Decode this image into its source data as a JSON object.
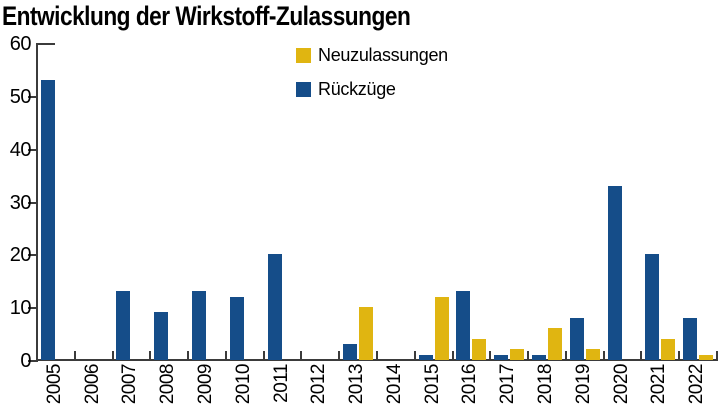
{
  "title": "Entwicklung der Wirkstoff-Zulassungen",
  "legend": {
    "items": [
      {
        "label": "Neuzulassungen",
        "color": "#e0b511"
      },
      {
        "label": "Rückzüge",
        "color": "#154d89"
      }
    ]
  },
  "colors": {
    "neuzulassungen": "#e0b511",
    "rueckzuege": "#154d89",
    "axis": "#3b3b3b",
    "text": "#000000"
  },
  "chart_data": {
    "type": "bar",
    "title": "Entwicklung der Wirkstoff-Zulassungen",
    "categories": [
      "2005",
      "2006",
      "2007",
      "2008",
      "2009",
      "2010",
      "2011",
      "2012",
      "2013",
      "2014",
      "2015",
      "2016",
      "2017",
      "2018",
      "2019",
      "2020",
      "2021",
      "2022"
    ],
    "series": [
      {
        "name": "Rückzüge",
        "color": "#154d89",
        "position": "left",
        "values": [
          53,
          0,
          13,
          9,
          13,
          12,
          20,
          0,
          3,
          0,
          1,
          13,
          1,
          1,
          8,
          33,
          20,
          8
        ]
      },
      {
        "name": "Neuzulassungen",
        "color": "#e0b511",
        "position": "right",
        "values": [
          0,
          0,
          0,
          0,
          0,
          0,
          0,
          0,
          10,
          0,
          12,
          4,
          2,
          6,
          2,
          0,
          4,
          1
        ]
      }
    ],
    "xlabel": "",
    "ylabel": "",
    "ylim": [
      0,
      60
    ],
    "yticks": [
      0,
      10,
      20,
      30,
      40,
      50,
      60
    ],
    "grid": false,
    "legend_position": "top-center",
    "xtick_rotation": 90
  }
}
